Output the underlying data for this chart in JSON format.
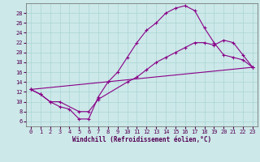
{
  "xlabel": "Windchill (Refroidissement éolien,°C)",
  "bg_color": "#cce8e8",
  "line_color": "#880088",
  "xlim": [
    -0.5,
    23.5
  ],
  "ylim": [
    5,
    30
  ],
  "xticks": [
    0,
    1,
    2,
    3,
    4,
    5,
    6,
    7,
    8,
    9,
    10,
    11,
    12,
    13,
    14,
    15,
    16,
    17,
    18,
    19,
    20,
    21,
    22,
    23
  ],
  "yticks": [
    6,
    8,
    10,
    12,
    14,
    16,
    18,
    20,
    22,
    24,
    26,
    28
  ],
  "line1_x": [
    0,
    1,
    2,
    3,
    4,
    5,
    6,
    7,
    8,
    9,
    10,
    11,
    12,
    13,
    14,
    15,
    16,
    17,
    18,
    19,
    20,
    21,
    22,
    23
  ],
  "line1_y": [
    12.5,
    11.5,
    10,
    9,
    8.5,
    6.5,
    6.5,
    11,
    14,
    16,
    19,
    22,
    24.5,
    26,
    28,
    29,
    29.5,
    28.5,
    25,
    22,
    19.5,
    19,
    18.5,
    17
  ],
  "line2_x": [
    0,
    1,
    2,
    3,
    5,
    6,
    7,
    10,
    11,
    12,
    13,
    14,
    15,
    16,
    17,
    18,
    19,
    20,
    21,
    22,
    23
  ],
  "line2_y": [
    12.5,
    11.5,
    10,
    10,
    8,
    8,
    10.5,
    14,
    15,
    16.5,
    18,
    19,
    20,
    21,
    22,
    22,
    21.5,
    22.5,
    22,
    19.5,
    17
  ],
  "line3_x": [
    0,
    23
  ],
  "line3_y": [
    12.5,
    17
  ],
  "tick_labelsize": 5,
  "xlabel_fontsize": 5.5,
  "grid_color": "#aad4d4",
  "spine_color": "#666666",
  "tick_color": "#550055",
  "label_color": "#550055"
}
